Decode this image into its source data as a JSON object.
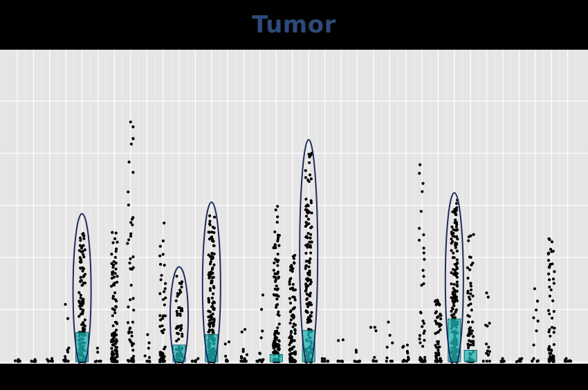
{
  "chart_data": {
    "type": "scatter",
    "title": "Tumor",
    "xlabel": "",
    "ylabel": "",
    "n_categories": 35,
    "ylim": [
      0,
      30
    ],
    "grid": true,
    "colors": {
      "panel": "#e5e5e5",
      "grid": "#ffffff",
      "points": "#000000",
      "bars": "#1fb5b5",
      "bar_edge": "#0f5f66",
      "ellipse": "#1d2a5c",
      "title": "#2e4a7a"
    },
    "bars": [
      {
        "x": 5,
        "value": 2.8
      },
      {
        "x": 11,
        "value": 1.6
      },
      {
        "x": 13,
        "value": 2.6
      },
      {
        "x": 17,
        "value": 0.7
      },
      {
        "x": 19,
        "value": 3.0
      },
      {
        "x": 28,
        "value": 4.1
      },
      {
        "x": 29,
        "value": 1.1
      }
    ],
    "highlighted": [
      {
        "x": 5,
        "ymax": 14.2
      },
      {
        "x": 11,
        "ymax": 9.1
      },
      {
        "x": 13,
        "ymax": 15.3
      },
      {
        "x": 19,
        "ymax": 21.3
      },
      {
        "x": 28,
        "ymax": 16.2
      }
    ],
    "series": [
      {
        "x": 1,
        "n": 4,
        "max": 0.2
      },
      {
        "x": 2,
        "n": 3,
        "max": 0.2
      },
      {
        "x": 3,
        "n": 4,
        "max": 0.3
      },
      {
        "x": 4,
        "n": 8,
        "max": 5.5
      },
      {
        "x": 5,
        "n": 150,
        "max": 12.3
      },
      {
        "x": 6,
        "n": 4,
        "max": 1.3
      },
      {
        "x": 7,
        "n": 110,
        "max": 12.4
      },
      {
        "x": 8,
        "n": 50,
        "max": 23.0
      },
      {
        "x": 9,
        "n": 6,
        "max": 2.6
      },
      {
        "x": 10,
        "n": 50,
        "max": 13.3
      },
      {
        "x": 11,
        "n": 70,
        "max": 8.2
      },
      {
        "x": 12,
        "n": 4,
        "max": 0.3
      },
      {
        "x": 13,
        "n": 180,
        "max": 14.0
      },
      {
        "x": 14,
        "n": 4,
        "max": 1.9
      },
      {
        "x": 15,
        "n": 12,
        "max": 3.1
      },
      {
        "x": 16,
        "n": 12,
        "max": 6.4
      },
      {
        "x": 17,
        "n": 110,
        "max": 14.9
      },
      {
        "x": 18,
        "n": 100,
        "max": 10.2
      },
      {
        "x": 19,
        "n": 170,
        "max": 20.0
      },
      {
        "x": 20,
        "n": 4,
        "max": 0.3
      },
      {
        "x": 21,
        "n": 4,
        "max": 2.1
      },
      {
        "x": 22,
        "n": 6,
        "max": 1.1
      },
      {
        "x": 23,
        "n": 5,
        "max": 3.3
      },
      {
        "x": 24,
        "n": 5,
        "max": 3.8
      },
      {
        "x": 25,
        "n": 10,
        "max": 1.6
      },
      {
        "x": 26,
        "n": 40,
        "max": 18.9
      },
      {
        "x": 27,
        "n": 60,
        "max": 5.9
      },
      {
        "x": 28,
        "n": 200,
        "max": 15.5
      },
      {
        "x": 29,
        "n": 70,
        "max": 12.2
      },
      {
        "x": 30,
        "n": 12,
        "max": 6.6
      },
      {
        "x": 31,
        "n": 4,
        "max": 0.3
      },
      {
        "x": 32,
        "n": 4,
        "max": 0.3
      },
      {
        "x": 33,
        "n": 10,
        "max": 7.0
      },
      {
        "x": 34,
        "n": 60,
        "max": 11.8
      },
      {
        "x": 35,
        "n": 4,
        "max": 0.3
      }
    ]
  }
}
